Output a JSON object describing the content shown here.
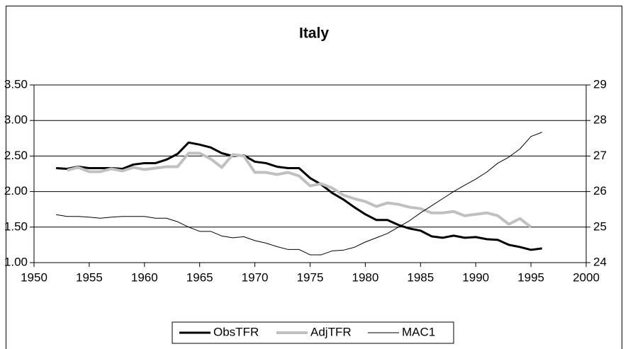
{
  "chart_data": {
    "type": "line",
    "title": "Italy",
    "xlim": [
      1950,
      2000
    ],
    "xticks": [
      1950,
      1955,
      1960,
      1965,
      1970,
      1975,
      1980,
      1985,
      1990,
      1995,
      2000
    ],
    "ylim": [
      1,
      3.5
    ],
    "yticks": [
      {
        "value": 1,
        "label": "1.00"
      },
      {
        "value": 1.5,
        "label": "1.50"
      },
      {
        "value": 2,
        "label": "2.00"
      },
      {
        "value": 2.5,
        "label": "2.50"
      },
      {
        "value": 3,
        "label": "3.00"
      },
      {
        "value": 3.5,
        "label": "3.50"
      }
    ],
    "y2lim": [
      24,
      29
    ],
    "y2ticks": [
      24,
      25,
      26,
      27,
      28,
      29
    ],
    "grid": true,
    "legend": "bottom",
    "series": [
      {
        "name": "ObsTFR",
        "color": "#000000",
        "width": 3,
        "x": [
          1952,
          1953,
          1954,
          1955,
          1956,
          1957,
          1958,
          1959,
          1960,
          1961,
          1962,
          1963,
          1964,
          1965,
          1966,
          1967,
          1968,
          1969,
          1970,
          1971,
          1972,
          1973,
          1974,
          1975,
          1976,
          1977,
          1978,
          1979,
          1980,
          1981,
          1982,
          1983,
          1984,
          1985,
          1986,
          1987,
          1988,
          1989,
          1990,
          1991,
          1992,
          1993,
          1994,
          1995,
          1996
        ],
        "values": [
          2.33,
          2.32,
          2.35,
          2.33,
          2.33,
          2.33,
          2.32,
          2.38,
          2.4,
          2.4,
          2.45,
          2.53,
          2.69,
          2.66,
          2.62,
          2.54,
          2.5,
          2.51,
          2.42,
          2.4,
          2.35,
          2.33,
          2.33,
          2.19,
          2.1,
          1.98,
          1.89,
          1.78,
          1.68,
          1.6,
          1.6,
          1.53,
          1.48,
          1.45,
          1.37,
          1.35,
          1.38,
          1.35,
          1.36,
          1.33,
          1.32,
          1.25,
          1.22,
          1.18,
          1.2
        ]
      },
      {
        "name": "AdjTFR",
        "color": "#c0c0c0",
        "width": 4,
        "x": [
          1953,
          1954,
          1955,
          1956,
          1957,
          1958,
          1959,
          1960,
          1961,
          1962,
          1963,
          1964,
          1965,
          1966,
          1967,
          1968,
          1969,
          1970,
          1971,
          1972,
          1973,
          1974,
          1975,
          1976,
          1977,
          1978,
          1979,
          1980,
          1981,
          1982,
          1983,
          1984,
          1985,
          1986,
          1987,
          1988,
          1989,
          1990,
          1991,
          1992,
          1993,
          1994,
          1995
        ],
        "values": [
          2.3,
          2.34,
          2.28,
          2.28,
          2.32,
          2.29,
          2.34,
          2.31,
          2.33,
          2.35,
          2.35,
          2.54,
          2.54,
          2.46,
          2.34,
          2.52,
          2.5,
          2.27,
          2.27,
          2.24,
          2.27,
          2.22,
          2.08,
          2.11,
          2.05,
          1.95,
          1.9,
          1.86,
          1.79,
          1.84,
          1.82,
          1.78,
          1.76,
          1.7,
          1.7,
          1.72,
          1.66,
          1.68,
          1.7,
          1.66,
          1.54,
          1.62,
          1.5
        ]
      },
      {
        "name": "MAC1",
        "color": "#000000",
        "width": 1,
        "axis": "y2",
        "x": [
          1952,
          1953,
          1954,
          1955,
          1956,
          1957,
          1958,
          1959,
          1960,
          1961,
          1962,
          1963,
          1964,
          1965,
          1966,
          1967,
          1968,
          1969,
          1970,
          1971,
          1972,
          1973,
          1974,
          1975,
          1976,
          1977,
          1978,
          1979,
          1980,
          1981,
          1982,
          1983,
          1984,
          1985,
          1986,
          1987,
          1988,
          1989,
          1990,
          1991,
          1992,
          1993,
          1994,
          1995,
          1996
        ],
        "values": [
          25.35,
          25.3,
          25.3,
          25.28,
          25.25,
          25.28,
          25.3,
          25.3,
          25.3,
          25.25,
          25.25,
          25.15,
          25.0,
          24.88,
          24.88,
          24.75,
          24.7,
          24.73,
          24.62,
          24.55,
          24.45,
          24.37,
          24.37,
          24.22,
          24.22,
          24.33,
          24.35,
          24.43,
          24.58,
          24.7,
          24.82,
          25.0,
          25.18,
          25.4,
          25.6,
          25.8,
          26.0,
          26.18,
          26.35,
          26.55,
          26.8,
          26.97,
          27.2,
          27.55,
          27.67
        ]
      }
    ]
  }
}
